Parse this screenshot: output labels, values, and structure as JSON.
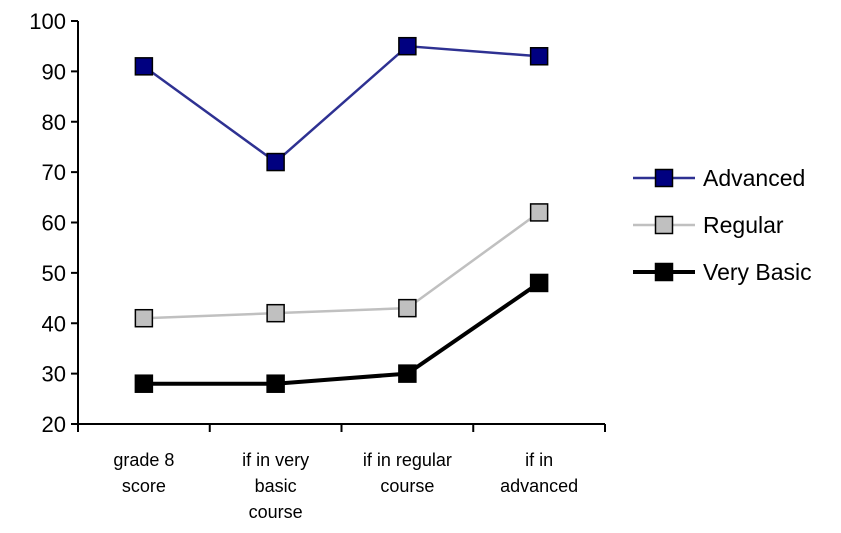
{
  "chart_data": {
    "type": "line",
    "categories": [
      [
        "grade 8",
        "score"
      ],
      [
        "if in very",
        "basic",
        "course"
      ],
      [
        "if in regular",
        "course"
      ],
      [
        "if in",
        "advanced"
      ]
    ],
    "series": [
      {
        "name": "Advanced",
        "values": [
          91,
          72,
          95,
          93
        ],
        "color": "#2e3192",
        "marker_fill": "#000080",
        "marker_stroke": "#000000",
        "line_width": "medium"
      },
      {
        "name": "Regular",
        "values": [
          41,
          42,
          43,
          62
        ],
        "color": "#c0c0c0",
        "marker_fill": "#c0c0c0",
        "marker_stroke": "#000000",
        "line_width": "medium"
      },
      {
        "name": "Very Basic",
        "values": [
          28,
          28,
          30,
          48
        ],
        "color": "#000000",
        "marker_fill": "#000000",
        "marker_stroke": "#000000",
        "line_width": "thick"
      }
    ],
    "ylim": [
      20,
      100
    ],
    "yticks": [
      20,
      30,
      40,
      50,
      60,
      70,
      80,
      90,
      100
    ],
    "grid": false,
    "legend_position": "right"
  }
}
